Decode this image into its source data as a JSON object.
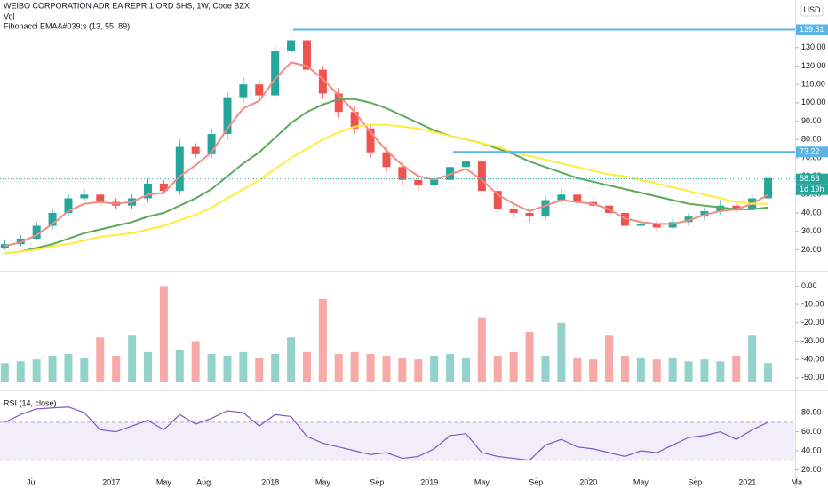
{
  "chart_data": [
    {
      "type": "candlestick",
      "title": "WEIBO CORPORATION ADR EA REPR 1 ORD SHS, 1W, Cboe BZX",
      "overlay_title": "Fibonacci EMA&#039;s (13, 55, 89)",
      "currency": "USD",
      "xlim": [
        2016.3,
        2021.3
      ],
      "ylim": [
        11,
        156
      ],
      "yticks": [
        {
          "value": 20,
          "label": "20.00"
        },
        {
          "value": 30,
          "label": "30.00"
        },
        {
          "value": 40,
          "label": "40.00"
        },
        {
          "value": 50,
          "label": "50.00"
        },
        {
          "value": 60,
          "label": "60.00"
        },
        {
          "value": 70,
          "label": "70.00"
        },
        {
          "value": 80,
          "label": "80.00"
        },
        {
          "value": 90,
          "label": "90.00"
        },
        {
          "value": 100,
          "label": "100.00"
        },
        {
          "value": 110,
          "label": "110.00"
        },
        {
          "value": 120,
          "label": "120.00"
        },
        {
          "value": 130,
          "label": "130.00"
        }
      ],
      "grid": false,
      "up_color": "#26a69a",
      "down_color": "#ef5350",
      "x": [
        2016.33,
        2016.43,
        2016.53,
        2016.63,
        2016.73,
        2016.83,
        2016.93,
        2017.03,
        2017.13,
        2017.23,
        2017.33,
        2017.43,
        2017.53,
        2017.63,
        2017.73,
        2017.83,
        2017.93,
        2018.03,
        2018.13,
        2018.23,
        2018.33,
        2018.43,
        2018.53,
        2018.63,
        2018.73,
        2018.83,
        2018.93,
        2019.03,
        2019.13,
        2019.23,
        2019.33,
        2019.43,
        2019.53,
        2019.63,
        2019.73,
        2019.83,
        2019.93,
        2020.03,
        2020.13,
        2020.23,
        2020.33,
        2020.43,
        2020.53,
        2020.63,
        2020.73,
        2020.83,
        2020.93,
        2021.03,
        2021.13
      ],
      "open": [
        21,
        23,
        26,
        33,
        40,
        48,
        50,
        46,
        44,
        48,
        56,
        52,
        76,
        72,
        83,
        103,
        110,
        104,
        128,
        134,
        118,
        105,
        95,
        86,
        73,
        65,
        58,
        55,
        58,
        65,
        68,
        52,
        42,
        40,
        38,
        47,
        50,
        46,
        44,
        40,
        33,
        34,
        32,
        35,
        38,
        41,
        44,
        42,
        48
      ],
      "high": [
        25,
        28,
        35,
        42,
        50,
        53,
        51,
        48,
        50,
        59,
        58,
        80,
        78,
        86,
        106,
        114,
        112,
        131,
        141,
        136,
        120,
        108,
        98,
        88,
        76,
        68,
        61,
        60,
        67,
        72,
        70,
        55,
        45,
        42,
        49,
        53,
        51,
        48,
        46,
        42,
        37,
        36,
        37,
        40,
        43,
        47,
        46,
        50,
        63
      ],
      "low": [
        20,
        22,
        25,
        31,
        38,
        46,
        44,
        42,
        42,
        46,
        50,
        50,
        70,
        70,
        80,
        100,
        101,
        102,
        124,
        115,
        102,
        92,
        83,
        70,
        62,
        55,
        52,
        53,
        56,
        63,
        50,
        40,
        37,
        35,
        36,
        45,
        44,
        42,
        38,
        30,
        31,
        30,
        31,
        33,
        36,
        39,
        40,
        41,
        46
      ],
      "close": [
        23,
        26,
        33,
        40,
        48,
        50,
        46,
        44,
        48,
        56,
        52,
        76,
        72,
        83,
        103,
        110,
        104,
        128,
        134,
        118,
        105,
        95,
        86,
        73,
        65,
        58,
        55,
        58,
        65,
        68,
        52,
        42,
        40,
        38,
        47,
        50,
        46,
        44,
        40,
        33,
        34,
        32,
        35,
        38,
        41,
        44,
        42,
        48,
        59
      ],
      "series": [
        {
          "color": "#f28b82",
          "values": [
            22,
            24,
            28,
            34,
            41,
            45,
            46,
            45,
            46,
            50,
            51,
            60,
            66,
            73,
            86,
            97,
            101,
            113,
            122,
            120,
            113,
            104,
            95,
            84,
            74,
            66,
            60,
            58,
            61,
            64,
            58,
            50,
            45,
            41,
            44,
            47,
            46,
            45,
            42,
            37,
            35,
            34,
            34,
            36,
            39,
            41,
            42,
            45,
            50
          ]
        },
        {
          "color": "#5ca85c",
          "values": [
            18,
            19,
            21,
            23,
            26,
            29,
            31,
            33,
            35,
            38,
            40,
            44,
            48,
            53,
            60,
            67,
            73,
            81,
            89,
            95,
            99,
            102,
            102,
            100,
            97,
            93,
            89,
            85,
            82,
            80,
            78,
            75,
            72,
            68,
            65,
            62,
            59,
            57,
            55,
            53,
            51,
            49,
            47,
            45,
            44,
            43,
            42,
            42,
            43
          ]
        },
        {
          "color": "#ffeb3b",
          "values": [
            18,
            19,
            20,
            22,
            23,
            25,
            27,
            28,
            29,
            31,
            33,
            36,
            39,
            43,
            48,
            53,
            58,
            64,
            70,
            75,
            80,
            84,
            87,
            88,
            88,
            87,
            86,
            84,
            82,
            80,
            78,
            76,
            73,
            71,
            69,
            67,
            65,
            63,
            61,
            60,
            58,
            56,
            54,
            52,
            50,
            48,
            46,
            45,
            45
          ]
        }
      ],
      "price_lines": [
        {
          "value": 139.81,
          "color": "#5ab4e6"
        },
        {
          "value": 73.22,
          "color": "#5ab4e6"
        }
      ],
      "last_price": 58.53,
      "countdown": "1d 19h"
    },
    {
      "type": "bar",
      "title": "Vol",
      "ylim": [
        -52,
        6
      ],
      "yticks": [
        {
          "value": 0,
          "label": "0.00"
        },
        {
          "value": -10,
          "label": "-10.00"
        },
        {
          "value": -20,
          "label": "-20.00"
        },
        {
          "value": -30,
          "label": "-30.00"
        },
        {
          "value": -40,
          "label": "-40.00"
        },
        {
          "value": -50,
          "label": "-50.00"
        }
      ],
      "up_color": "#93d2cc",
      "down_color": "#f7a9a7",
      "values": [
        -42,
        -41,
        -40,
        -38,
        -37,
        -39,
        -28,
        -38,
        -27,
        -36,
        0,
        -35,
        -30,
        -37,
        -38,
        -36,
        -39,
        -37,
        -28,
        -36,
        -7,
        -37,
        -36,
        -37,
        -38,
        -39,
        -40,
        -38,
        -37,
        -39,
        -17,
        -38,
        -36,
        -25,
        -38,
        -20,
        -39,
        -40,
        -27,
        -38,
        -39,
        -40,
        -39,
        -41,
        -40,
        -41,
        -38,
        -27,
        -42
      ]
    },
    {
      "type": "line",
      "title": "RSI (14, close)",
      "color": "#7e57c2",
      "ylim": [
        12,
        96
      ],
      "yticks": [
        {
          "value": 80,
          "label": "80.00"
        },
        {
          "value": 60,
          "label": "60.00"
        },
        {
          "value": 40,
          "label": "40.00"
        },
        {
          "value": 20,
          "label": "20.00"
        }
      ],
      "bands": [
        30,
        70
      ],
      "xticks": [
        {
          "value": 2016.5,
          "label": "Jul"
        },
        2017,
        {
          "value": 2017.33,
          "label": "May"
        },
        {
          "value": 2017.58,
          "label": "Aug"
        },
        2018,
        {
          "value": 2018.33,
          "label": "May"
        },
        {
          "value": 2018.67,
          "label": "Sep"
        },
        2019,
        {
          "value": 2019.33,
          "label": "May"
        },
        {
          "value": 2019.67,
          "label": "Sep"
        },
        2020,
        {
          "value": 2020.33,
          "label": "May"
        },
        {
          "value": 2020.67,
          "label": "Sep"
        },
        2021,
        {
          "value": 2021.31,
          "label": "Ma"
        }
      ],
      "values": [
        70,
        78,
        84,
        85,
        86,
        80,
        62,
        60,
        66,
        72,
        62,
        78,
        68,
        74,
        82,
        80,
        66,
        78,
        76,
        55,
        48,
        44,
        40,
        36,
        38,
        32,
        34,
        42,
        56,
        58,
        38,
        34,
        32,
        30,
        46,
        52,
        44,
        42,
        38,
        34,
        40,
        38,
        46,
        54,
        56,
        60,
        52,
        62,
        70
      ]
    }
  ]
}
